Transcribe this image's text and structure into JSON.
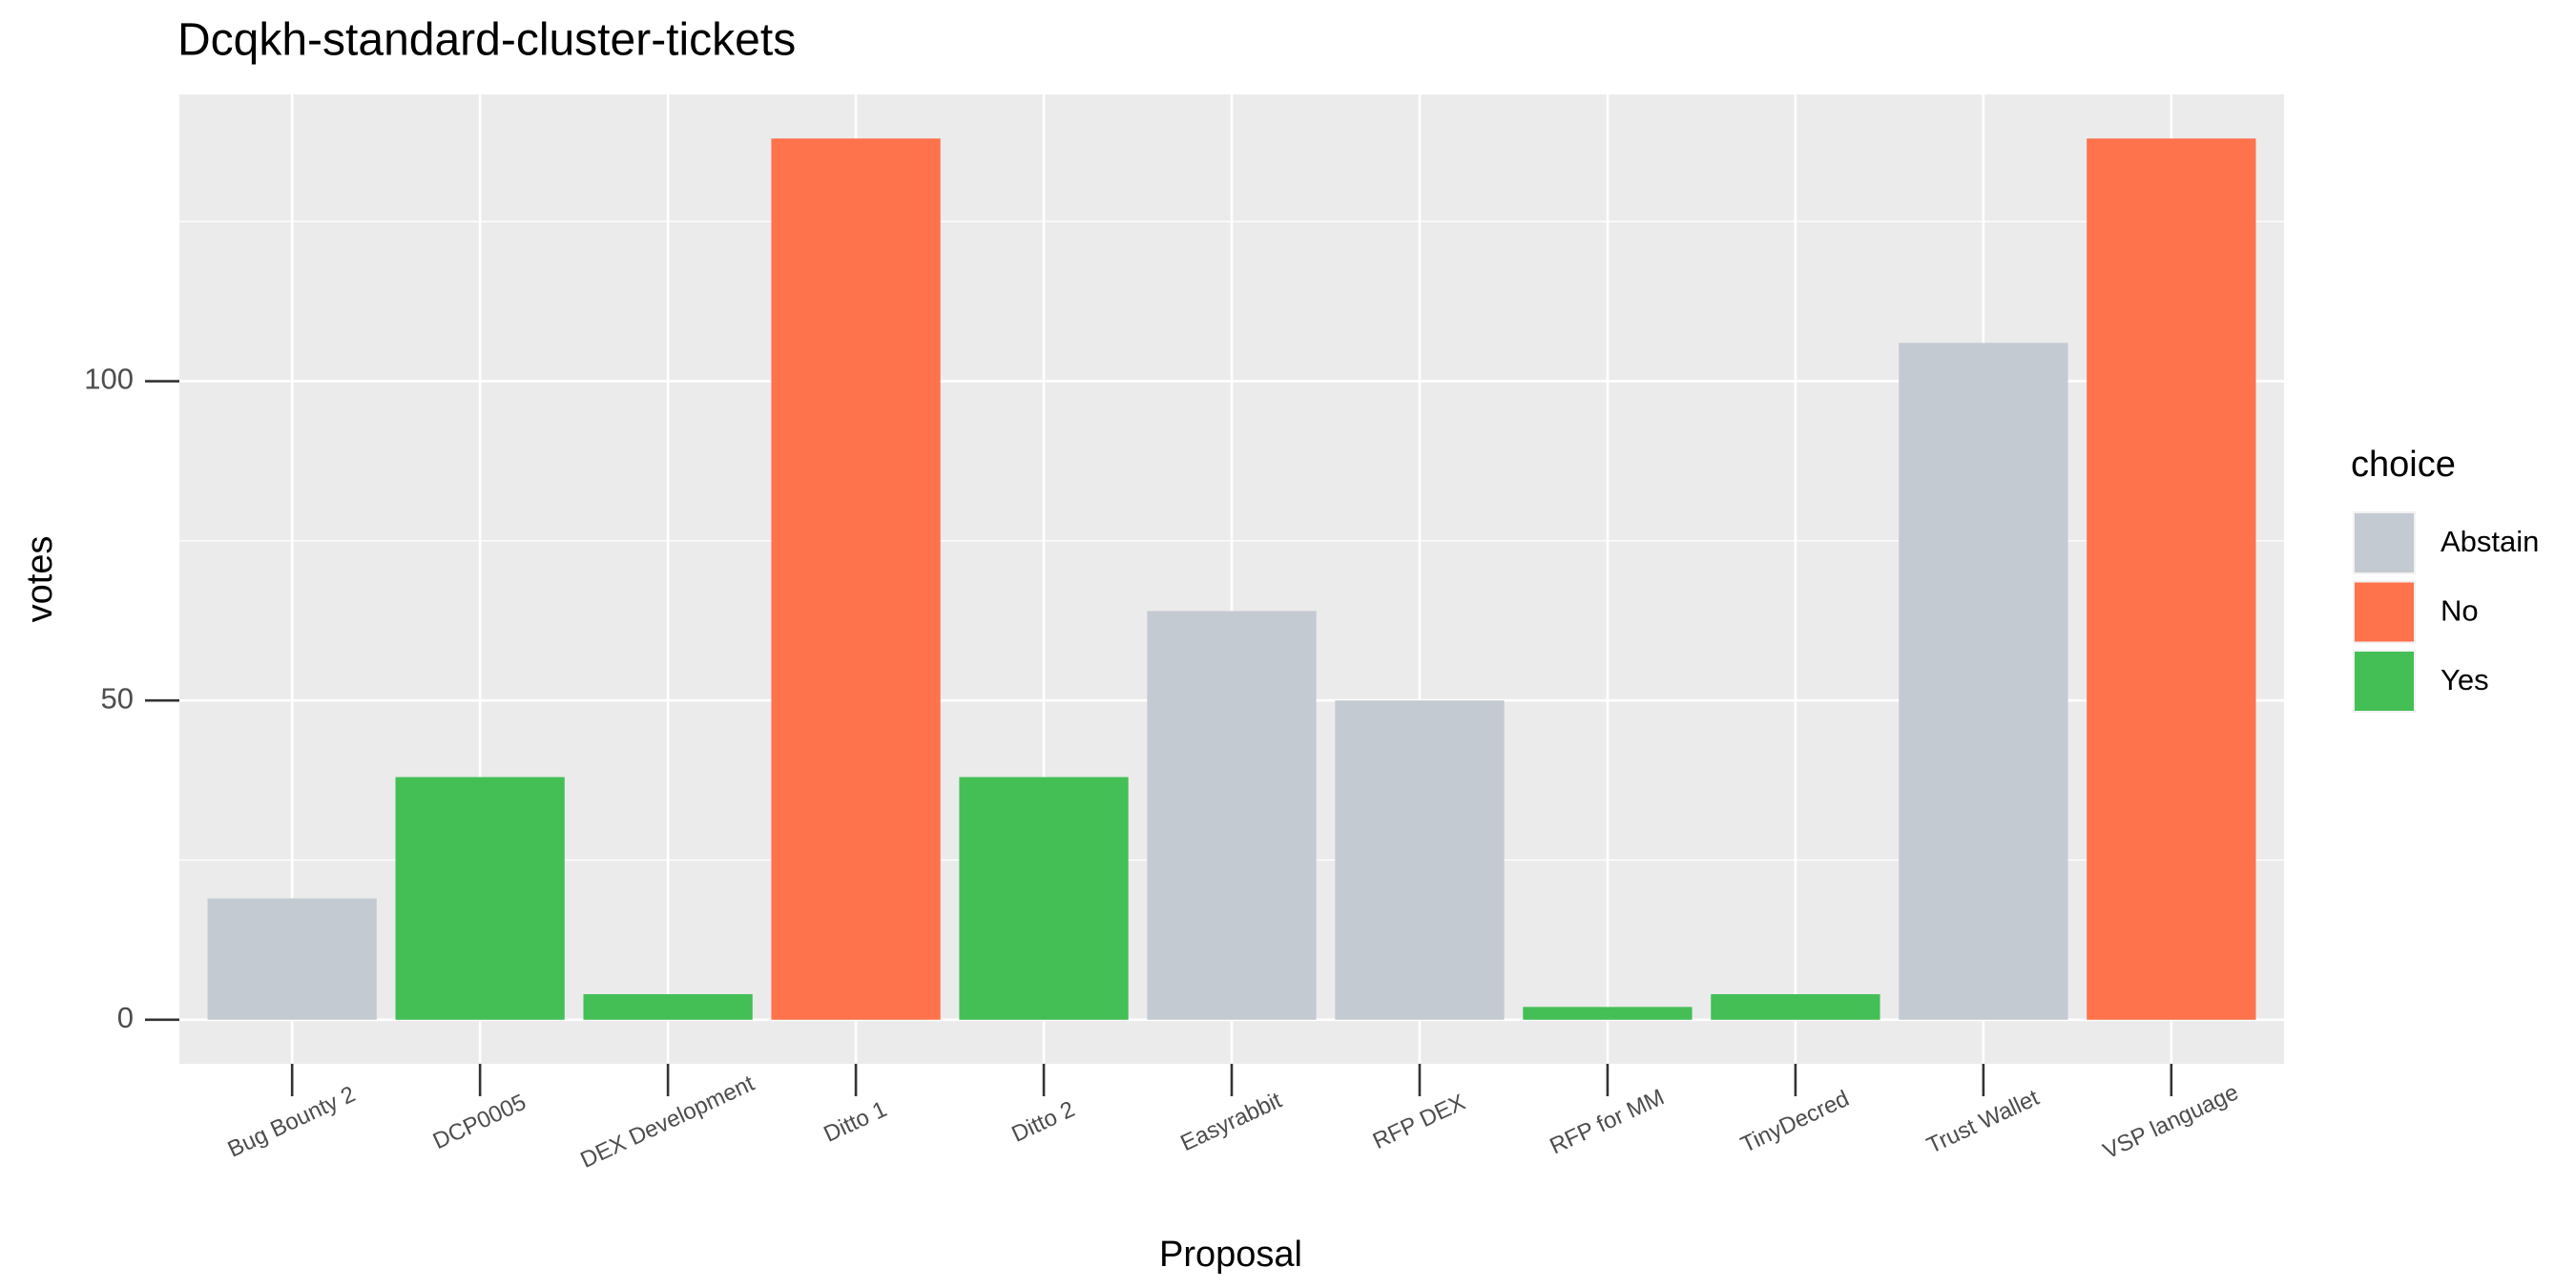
{
  "chart_data": {
    "type": "bar",
    "title": "Dcqkh-standard-cluster-tickets",
    "x_label": "Proposal",
    "y_label": "votes",
    "legend_title": "choice",
    "legend_position": "right",
    "categories": [
      "Bug Bounty 2",
      "DCP0005",
      "DEX Development",
      "Ditto 1",
      "Ditto 2",
      "Easyrabbit",
      "RFP DEX",
      "RFP for MM",
      "TinyDecred",
      "Trust Wallet",
      "VSP language"
    ],
    "series": [
      {
        "name": "Abstain",
        "color": "#c4cad1",
        "values": [
          19,
          null,
          null,
          null,
          null,
          64,
          50,
          null,
          null,
          106,
          null
        ]
      },
      {
        "name": "No",
        "color": "#fe724c",
        "values": [
          null,
          null,
          null,
          138,
          null,
          null,
          null,
          null,
          null,
          null,
          138
        ]
      },
      {
        "name": "Yes",
        "color": "#43bf55",
        "values": [
          null,
          38,
          4,
          null,
          38,
          null,
          null,
          2,
          4,
          null,
          null
        ]
      }
    ],
    "ylim": [
      -6.9,
      144.9
    ],
    "yticks": [
      0,
      50,
      100
    ],
    "y_minor_ticks": [
      25,
      75,
      125
    ],
    "grid": true
  }
}
